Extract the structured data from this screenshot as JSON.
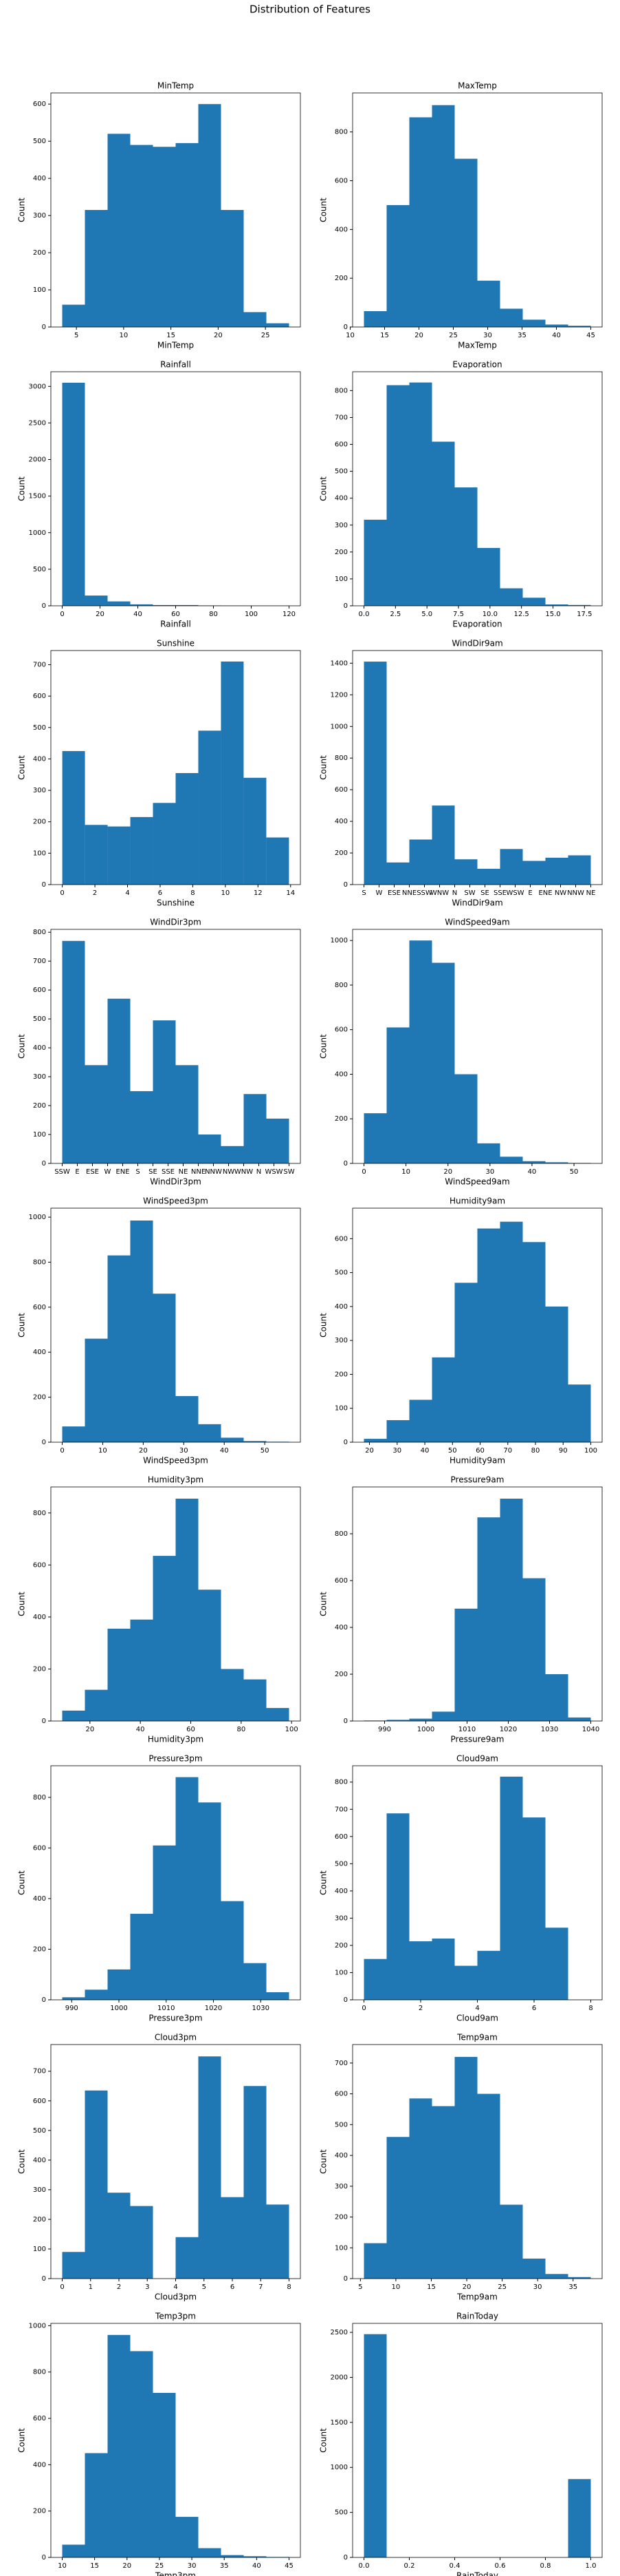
{
  "title": "Distribution of Features",
  "chart_data": [
    {
      "type": "histogram",
      "title": "MinTemp",
      "xlabel": "MinTemp",
      "ylabel": "Count",
      "color": "#1f77b4",
      "bins": [
        3.5,
        5.9,
        8.3,
        10.7,
        13.1,
        15.5,
        17.9,
        20.3,
        22.7,
        25.1,
        27.5
      ],
      "values": [
        60,
        315,
        520,
        490,
        485,
        495,
        600,
        315,
        40,
        10
      ],
      "xlim": [
        2.3,
        28.7
      ],
      "xticks": [
        5,
        10,
        15,
        20,
        25
      ],
      "ylim": [
        0,
        630
      ],
      "yticks": [
        0,
        100,
        200,
        300,
        400,
        500,
        600
      ]
    },
    {
      "type": "histogram",
      "title": "MaxTemp",
      "xlabel": "MaxTemp",
      "ylabel": "Count",
      "color": "#1f77b4",
      "bins": [
        12,
        15.3,
        18.6,
        21.9,
        25.2,
        28.5,
        31.8,
        35.1,
        38.4,
        41.7,
        45
      ],
      "values": [
        65,
        500,
        860,
        910,
        690,
        190,
        75,
        30,
        10,
        5
      ],
      "xlim": [
        10.35,
        46.65
      ],
      "xticks": [
        10,
        15,
        20,
        25,
        30,
        35,
        40,
        45
      ],
      "ylim": [
        0,
        960
      ],
      "yticks": [
        0,
        200,
        400,
        600,
        800
      ]
    },
    {
      "type": "histogram",
      "title": "Rainfall",
      "xlabel": "Rainfall",
      "ylabel": "Count",
      "color": "#1f77b4",
      "bins": [
        0,
        12,
        24,
        36,
        48,
        60,
        72,
        84,
        96,
        108,
        120
      ],
      "values": [
        3050,
        140,
        60,
        20,
        10,
        10,
        5,
        3,
        2,
        2
      ],
      "xlim": [
        -6,
        126
      ],
      "xticks": [
        0,
        20,
        40,
        60,
        80,
        100,
        120
      ],
      "ylim": [
        0,
        3200
      ],
      "yticks": [
        0,
        500,
        1000,
        1500,
        2000,
        2500,
        3000
      ]
    },
    {
      "type": "histogram",
      "title": "Evaporation",
      "xlabel": "Evaporation",
      "ylabel": "Count",
      "color": "#1f77b4",
      "bins": [
        0,
        1.8,
        3.6,
        5.4,
        7.2,
        9,
        10.8,
        12.6,
        14.4,
        16.2,
        18
      ],
      "values": [
        320,
        820,
        830,
        610,
        440,
        215,
        65,
        30,
        5,
        3
      ],
      "xlim": [
        -0.9,
        18.9
      ],
      "xticks": [
        {
          "value": 0,
          "label": "0.0"
        },
        2.5,
        {
          "value": 5,
          "label": "5.0"
        },
        7.5,
        {
          "value": 10,
          "label": "10.0"
        },
        12.5,
        {
          "value": 15,
          "label": "15.0"
        },
        17.5
      ],
      "ylim": [
        0,
        870
      ],
      "yticks": [
        0,
        100,
        200,
        300,
        400,
        500,
        600,
        700,
        800
      ]
    },
    {
      "type": "histogram",
      "title": "Sunshine",
      "xlabel": "Sunshine",
      "ylabel": "Count",
      "color": "#1f77b4",
      "bins": [
        0,
        1.39,
        2.78,
        4.17,
        5.56,
        6.95,
        8.34,
        9.73,
        11.12,
        12.51,
        13.9
      ],
      "values": [
        425,
        190,
        185,
        215,
        260,
        355,
        490,
        710,
        340,
        150
      ],
      "xlim": [
        -0.7,
        14.6
      ],
      "xticks": [
        0,
        2,
        4,
        6,
        8,
        10,
        12,
        14
      ],
      "ylim": [
        0,
        745
      ],
      "yticks": [
        0,
        100,
        200,
        300,
        400,
        500,
        600,
        700
      ]
    },
    {
      "type": "histogram",
      "title": "WindDir9am",
      "xlabel": "WindDir9am",
      "ylabel": "Count",
      "color": "#1f77b4",
      "bins": [
        0,
        1.5,
        3,
        4.5,
        6,
        7.5,
        9,
        10.5,
        12,
        13.5,
        15
      ],
      "values": [
        1410,
        140,
        285,
        500,
        160,
        100,
        225,
        150,
        170,
        185
      ],
      "xlim": [
        -0.75,
        15.75
      ],
      "xticks": [
        {
          "value": 0,
          "label": "S"
        },
        {
          "value": 1,
          "label": "W"
        },
        {
          "value": 2,
          "label": "ESE"
        },
        {
          "value": 3,
          "label": "NNE"
        },
        {
          "value": 4,
          "label": "SSW"
        },
        {
          "value": 5,
          "label": "WNW"
        },
        {
          "value": 6,
          "label": "N"
        },
        {
          "value": 7,
          "label": "SW"
        },
        {
          "value": 8,
          "label": "SE"
        },
        {
          "value": 9,
          "label": "SSE"
        },
        {
          "value": 10,
          "label": "WSW"
        },
        {
          "value": 11,
          "label": "E"
        },
        {
          "value": 12,
          "label": "ENE"
        },
        {
          "value": 13,
          "label": "NW"
        },
        {
          "value": 14,
          "label": "NNW"
        },
        {
          "value": 15,
          "label": "NE"
        }
      ],
      "ylim": [
        0,
        1480
      ],
      "yticks": [
        0,
        200,
        400,
        600,
        800,
        1000,
        1200,
        1400
      ]
    },
    {
      "type": "histogram",
      "title": "WindDir3pm",
      "xlabel": "WindDir3pm",
      "ylabel": "Count",
      "color": "#1f77b4",
      "bins": [
        0,
        1.5,
        3,
        4.5,
        6,
        7.5,
        9,
        10.5,
        12,
        13.5,
        15
      ],
      "values": [
        770,
        340,
        570,
        250,
        495,
        340,
        100,
        60,
        240,
        155
      ],
      "xlim": [
        -0.75,
        15.75
      ],
      "xticks": [
        {
          "value": 0,
          "label": "SSW"
        },
        {
          "value": 1,
          "label": "E"
        },
        {
          "value": 2,
          "label": "ESE"
        },
        {
          "value": 3,
          "label": "W"
        },
        {
          "value": 4,
          "label": "ENE"
        },
        {
          "value": 5,
          "label": "S"
        },
        {
          "value": 6,
          "label": "SE"
        },
        {
          "value": 7,
          "label": "SSE"
        },
        {
          "value": 8,
          "label": "NE"
        },
        {
          "value": 9,
          "label": "NNE"
        },
        {
          "value": 10,
          "label": "NNW"
        },
        {
          "value": 11,
          "label": "NW"
        },
        {
          "value": 12,
          "label": "WNW"
        },
        {
          "value": 13,
          "label": "N"
        },
        {
          "value": 14,
          "label": "WSW"
        },
        {
          "value": 15,
          "label": "SW"
        }
      ],
      "ylim": [
        0,
        810
      ],
      "yticks": [
        0,
        100,
        200,
        300,
        400,
        500,
        600,
        700,
        800
      ]
    },
    {
      "type": "histogram",
      "title": "WindSpeed9am",
      "xlabel": "WindSpeed9am",
      "ylabel": "Count",
      "color": "#1f77b4",
      "bins": [
        0,
        5.4,
        10.8,
        16.2,
        21.6,
        27,
        32.4,
        37.8,
        43.2,
        48.6,
        54
      ],
      "values": [
        225,
        610,
        1000,
        900,
        400,
        90,
        30,
        10,
        5,
        2
      ],
      "xlim": [
        -2.7,
        56.7
      ],
      "xticks": [
        0,
        10,
        20,
        30,
        40,
        50
      ],
      "ylim": [
        0,
        1050
      ],
      "yticks": [
        0,
        200,
        400,
        600,
        800,
        1000
      ]
    },
    {
      "type": "histogram",
      "title": "WindSpeed3pm",
      "xlabel": "WindSpeed3pm",
      "ylabel": "Count",
      "color": "#1f77b4",
      "bins": [
        0,
        5.6,
        11.2,
        16.8,
        22.4,
        28,
        33.6,
        39.2,
        44.8,
        50.4,
        56
      ],
      "values": [
        70,
        460,
        830,
        985,
        660,
        205,
        80,
        20,
        5,
        2
      ],
      "xlim": [
        -2.8,
        58.8
      ],
      "xticks": [
        0,
        10,
        20,
        30,
        40,
        50
      ],
      "ylim": [
        0,
        1040
      ],
      "yticks": [
        0,
        200,
        400,
        600,
        800,
        1000
      ]
    },
    {
      "type": "histogram",
      "title": "Humidity9am",
      "xlabel": "Humidity9am",
      "ylabel": "Count",
      "color": "#1f77b4",
      "bins": [
        18,
        26.2,
        34.4,
        42.6,
        50.8,
        59,
        67.2,
        75.4,
        83.6,
        91.8,
        100
      ],
      "values": [
        10,
        65,
        125,
        250,
        470,
        630,
        650,
        590,
        400,
        170
      ],
      "xlim": [
        13.9,
        104.1
      ],
      "xticks": [
        20,
        30,
        40,
        50,
        60,
        70,
        80,
        90,
        100
      ],
      "ylim": [
        0,
        690
      ],
      "yticks": [
        0,
        100,
        200,
        300,
        400,
        500,
        600
      ]
    },
    {
      "type": "histogram",
      "title": "Humidity3pm",
      "xlabel": "Humidity3pm",
      "ylabel": "Count",
      "color": "#1f77b4",
      "bins": [
        9,
        18,
        27,
        36,
        45,
        54,
        63,
        72,
        81,
        90,
        99
      ],
      "values": [
        40,
        120,
        355,
        390,
        635,
        855,
        505,
        200,
        160,
        50
      ],
      "xlim": [
        4.5,
        103.5
      ],
      "xticks": [
        20,
        40,
        60,
        80,
        100
      ],
      "ylim": [
        0,
        900
      ],
      "yticks": [
        0,
        200,
        400,
        600,
        800
      ]
    },
    {
      "type": "histogram",
      "title": "Pressure9am",
      "xlabel": "Pressure9am",
      "ylabel": "Count",
      "color": "#1f77b4",
      "bins": [
        985,
        990.5,
        996,
        1001.5,
        1007,
        1012.5,
        1018,
        1023.5,
        1029,
        1034.5,
        1040
      ],
      "values": [
        2,
        5,
        10,
        40,
        480,
        870,
        950,
        610,
        200,
        15
      ],
      "xlim": [
        982.25,
        1042.75
      ],
      "xticks": [
        990,
        1000,
        1010,
        1020,
        1030,
        1040
      ],
      "ylim": [
        0,
        1000
      ],
      "yticks": [
        0,
        200,
        400,
        600,
        800
      ]
    },
    {
      "type": "histogram",
      "title": "Pressure3pm",
      "xlabel": "Pressure3pm",
      "ylabel": "Count",
      "color": "#1f77b4",
      "bins": [
        988,
        992.8,
        997.6,
        1002.4,
        1007.2,
        1012,
        1016.8,
        1021.6,
        1026.4,
        1031.2,
        1036
      ],
      "values": [
        10,
        40,
        120,
        340,
        610,
        880,
        780,
        390,
        145,
        30
      ],
      "xlim": [
        985.6,
        1038.4
      ],
      "xticks": [
        990,
        1000,
        1010,
        1020,
        1030
      ],
      "ylim": [
        0,
        925
      ],
      "yticks": [
        0,
        200,
        400,
        600,
        800
      ]
    },
    {
      "type": "histogram",
      "title": "Cloud9am",
      "xlabel": "Cloud9am",
      "ylabel": "Count",
      "color": "#1f77b4",
      "bins": [
        0,
        0.8,
        1.6,
        2.4,
        3.2,
        4,
        4.8,
        5.6,
        6.4,
        7.2,
        8
      ],
      "values": [
        150,
        685,
        215,
        225,
        125,
        180,
        820,
        670,
        265,
        0
      ],
      "xlim": [
        -0.4,
        8.4
      ],
      "xticks": [
        0,
        2,
        4,
        6,
        8
      ],
      "ylim": [
        0,
        860
      ],
      "yticks": [
        0,
        100,
        200,
        300,
        400,
        500,
        600,
        700,
        800
      ]
    },
    {
      "type": "histogram",
      "title": "Cloud3pm",
      "xlabel": "Cloud3pm",
      "ylabel": "Count",
      "color": "#1f77b4",
      "bins": [
        0,
        0.8,
        1.6,
        2.4,
        3.2,
        4,
        4.8,
        5.6,
        6.4,
        7.2,
        8
      ],
      "values": [
        90,
        635,
        290,
        245,
        0,
        140,
        750,
        275,
        650,
        250
      ],
      "xlim": [
        -0.4,
        8.4
      ],
      "xticks": [
        0,
        1,
        2,
        3,
        4,
        5,
        6,
        7,
        8
      ],
      "ylim": [
        0,
        790
      ],
      "yticks": [
        0,
        100,
        200,
        300,
        400,
        500,
        600,
        700
      ]
    },
    {
      "type": "histogram",
      "title": "Temp9am",
      "xlabel": "Temp9am",
      "ylabel": "Count",
      "color": "#1f77b4",
      "bins": [
        5.5,
        8.7,
        11.9,
        15.1,
        18.3,
        21.5,
        24.7,
        27.9,
        31.1,
        34.3,
        37.5
      ],
      "values": [
        115,
        460,
        585,
        560,
        720,
        600,
        240,
        65,
        15,
        5
      ],
      "xlim": [
        3.9,
        39.1
      ],
      "xticks": [
        5,
        10,
        15,
        20,
        25,
        30,
        35
      ],
      "ylim": [
        0,
        760
      ],
      "yticks": [
        0,
        100,
        200,
        300,
        400,
        500,
        600,
        700
      ]
    },
    {
      "type": "histogram",
      "title": "Temp3pm",
      "xlabel": "Temp3pm",
      "ylabel": "Count",
      "color": "#1f77b4",
      "bins": [
        10,
        13.5,
        17,
        20.5,
        24,
        27.5,
        31,
        34.5,
        38,
        41.5,
        45
      ],
      "values": [
        55,
        450,
        960,
        890,
        710,
        175,
        40,
        10,
        5,
        2
      ],
      "xlim": [
        8.25,
        46.75
      ],
      "xticks": [
        10,
        15,
        20,
        25,
        30,
        35,
        40,
        45
      ],
      "ylim": [
        0,
        1010
      ],
      "yticks": [
        0,
        200,
        400,
        600,
        800,
        1000
      ]
    },
    {
      "type": "histogram",
      "title": "RainToday",
      "xlabel": "RainToday",
      "ylabel": "Count",
      "color": "#1f77b4",
      "bins": [
        0,
        0.1,
        0.2,
        0.3,
        0.4,
        0.5,
        0.6,
        0.7,
        0.8,
        0.9,
        1
      ],
      "values": [
        2480,
        0,
        0,
        0,
        0,
        0,
        0,
        0,
        0,
        870
      ],
      "xlim": [
        -0.05,
        1.05
      ],
      "xticks": [
        {
          "value": 0,
          "label": "0.0"
        },
        0.2,
        0.4,
        0.6,
        0.8,
        {
          "value": 1,
          "label": "1.0"
        }
      ],
      "ylim": [
        0,
        2600
      ],
      "yticks": [
        0,
        500,
        1000,
        1500,
        2000,
        2500
      ]
    }
  ]
}
